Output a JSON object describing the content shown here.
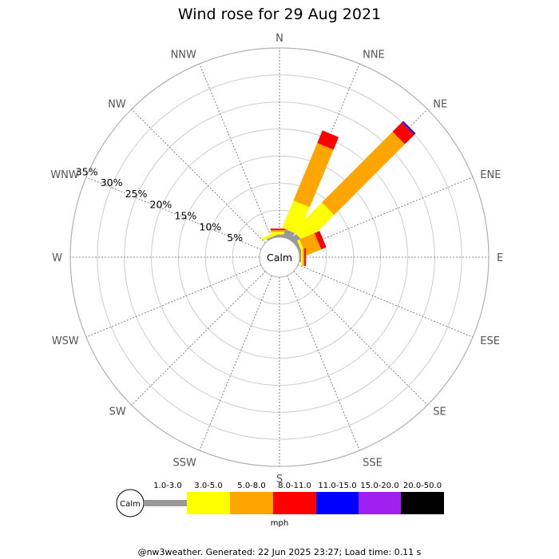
{
  "chart_data": {
    "type": "wind-rose",
    "title": "Wind rose for 29 Aug 2021",
    "directions": [
      "N",
      "NNE",
      "NE",
      "ENE",
      "E",
      "ESE",
      "SE",
      "SSE",
      "S",
      "SSW",
      "SW",
      "WSW",
      "W",
      "WNW",
      "NW",
      "NNW"
    ],
    "radial_ticks": [
      5,
      10,
      15,
      20,
      25,
      30,
      35
    ],
    "radial_tick_labels": [
      "5%",
      "10%",
      "15%",
      "20%",
      "25%",
      "30%",
      "35%"
    ],
    "radial_max": 35,
    "calm_label": "Calm",
    "speed_bins": [
      {
        "label": "1.0-3.0",
        "color": "#999999"
      },
      {
        "label": "3.0-5.0",
        "color": "#ffff00"
      },
      {
        "label": "5.0-8.0",
        "color": "#ffa500"
      },
      {
        "label": "8.0-11.0",
        "color": "#ff0000"
      },
      {
        "label": "11.0-15.0",
        "color": "#0000ff"
      },
      {
        "label": "15.0-20.0",
        "color": "#a020f0"
      },
      {
        "label": "20.0-50.0",
        "color": "#000000"
      }
    ],
    "unit": "mph",
    "series": [
      {
        "direction": "N",
        "percentages": [
          0.5,
          0.5,
          0.3,
          0.3,
          0,
          0,
          0
        ]
      },
      {
        "direction": "NNE",
        "percentages": [
          1.5,
          5.5,
          11.5,
          2.5,
          0,
          0,
          0
        ]
      },
      {
        "direction": "NE",
        "percentages": [
          1.5,
          7.5,
          18.5,
          2.5,
          0.3,
          0,
          0
        ]
      },
      {
        "direction": "ENE",
        "percentages": [
          0.5,
          0.5,
          3.0,
          1.0,
          0,
          0,
          0
        ]
      },
      {
        "direction": "E",
        "percentages": [
          0.3,
          0.3,
          0.3,
          0.3,
          0,
          0,
          0
        ]
      },
      {
        "direction": "ESE",
        "percentages": [
          0,
          0,
          0,
          0,
          0,
          0,
          0
        ]
      },
      {
        "direction": "SE",
        "percentages": [
          0,
          0,
          0,
          0,
          0,
          0,
          0
        ]
      },
      {
        "direction": "SSE",
        "percentages": [
          0,
          0,
          0,
          0,
          0,
          0,
          0
        ]
      },
      {
        "direction": "S",
        "percentages": [
          0,
          0,
          0,
          0,
          0,
          0,
          0
        ]
      },
      {
        "direction": "SSW",
        "percentages": [
          0,
          0,
          0,
          0,
          0,
          0,
          0
        ]
      },
      {
        "direction": "SW",
        "percentages": [
          0,
          0,
          0,
          0,
          0,
          0,
          0
        ]
      },
      {
        "direction": "WSW",
        "percentages": [
          0,
          0,
          0,
          0,
          0,
          0,
          0
        ]
      },
      {
        "direction": "W",
        "percentages": [
          0,
          0,
          0,
          0,
          0,
          0,
          0
        ]
      },
      {
        "direction": "WNW",
        "percentages": [
          0,
          0,
          0,
          0,
          0,
          0,
          0
        ]
      },
      {
        "direction": "NW",
        "percentages": [
          0,
          0,
          0,
          0,
          0,
          0,
          0
        ]
      },
      {
        "direction": "NNW",
        "percentages": [
          0.3,
          0.5,
          0,
          0,
          0,
          0,
          0
        ]
      }
    ]
  },
  "footer": "@nw3weather. Generated: 22 Jun 2025 23:27; Load time: 0.11 s"
}
